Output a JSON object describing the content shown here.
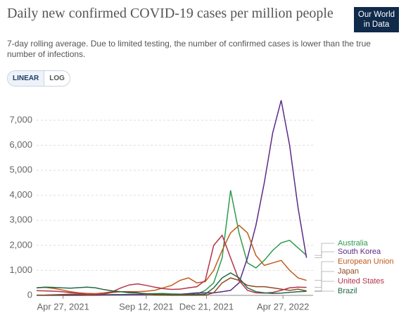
{
  "logo": {
    "line1": "Our World",
    "line2": "in Data"
  },
  "controls": [
    "LINEAR",
    "LOG"
  ],
  "chart_data": {
    "type": "line",
    "title": "Daily new confirmed COVID-19 cases per million people",
    "subtitle": "7-day rolling average. Due to limited testing, the number of confirmed cases is lower than the true number of infections.",
    "x": [
      "2021-03-14",
      "2021-03-28",
      "2021-04-11",
      "2021-04-25",
      "2021-05-09",
      "2021-05-23",
      "2021-06-06",
      "2021-06-20",
      "2021-07-04",
      "2021-07-18",
      "2021-08-01",
      "2021-08-15",
      "2021-08-29",
      "2021-09-12",
      "2021-09-26",
      "2021-10-10",
      "2021-10-24",
      "2021-11-07",
      "2021-11-21",
      "2021-12-05",
      "2021-12-19",
      "2022-01-02",
      "2022-01-16",
      "2022-01-30",
      "2022-02-13",
      "2022-02-27",
      "2022-03-13",
      "2022-03-27",
      "2022-04-10",
      "2022-04-24",
      "2022-05-08",
      "2022-05-22",
      "2022-06-05"
    ],
    "xlim": [
      "2021-03-14",
      "2022-06-16"
    ],
    "xticks": [
      {
        "value": "2021-04-27",
        "label": "Apr 27, 2021"
      },
      {
        "value": "2021-09-12",
        "label": "Sep 12, 2021"
      },
      {
        "value": "2021-12-21",
        "label": "Dec 21, 2021"
      },
      {
        "value": "2022-04-27",
        "label": "Apr 27, 2022"
      }
    ],
    "ylim": [
      0,
      7900
    ],
    "yticks": [
      0,
      {
        "value": 1000,
        "label": "1,000"
      },
      {
        "value": 2000,
        "label": "2,000"
      },
      {
        "value": 3000,
        "label": "3,000"
      },
      {
        "value": 4000,
        "label": "4,000"
      },
      {
        "value": 5000,
        "label": "5,000"
      },
      {
        "value": 6000,
        "label": "6,000"
      },
      {
        "value": 7000,
        "label": "7,000"
      }
    ],
    "grid": true,
    "series": [
      {
        "name": "Australia",
        "color": "#2f9a4e",
        "values": [
          1,
          1,
          1,
          1,
          1,
          1,
          2,
          3,
          5,
          10,
          15,
          20,
          40,
          60,
          70,
          80,
          60,
          50,
          50,
          50,
          200,
          500,
          1500,
          4200,
          2500,
          1300,
          1100,
          1400,
          1800,
          2100,
          2200,
          1900,
          1600
        ]
      },
      {
        "name": "South Korea",
        "color": "#5b2a86",
        "values": [
          8,
          9,
          10,
          12,
          11,
          11,
          10,
          12,
          25,
          30,
          30,
          35,
          30,
          35,
          40,
          35,
          30,
          45,
          70,
          100,
          100,
          100,
          150,
          200,
          500,
          1500,
          2800,
          4500,
          6500,
          7800,
          6000,
          3500,
          1500
        ]
      },
      {
        "name": "European Union",
        "color": "#c25a1c",
        "values": [
          300,
          320,
          280,
          220,
          150,
          100,
          80,
          70,
          100,
          150,
          150,
          150,
          150,
          170,
          200,
          300,
          400,
          600,
          700,
          500,
          550,
          1000,
          1800,
          2500,
          2800,
          2500,
          1600,
          1200,
          1300,
          1400,
          1000,
          700,
          600
        ]
      },
      {
        "name": "Japan",
        "color": "#8e4a1f",
        "values": [
          10,
          15,
          25,
          35,
          45,
          40,
          20,
          30,
          60,
          120,
          150,
          140,
          100,
          50,
          15,
          5,
          3,
          2,
          2,
          2,
          5,
          100,
          500,
          700,
          600,
          400,
          350,
          350,
          300,
          250,
          200,
          250,
          180
        ]
      },
      {
        "name": "United States",
        "color": "#b3344a",
        "values": [
          190,
          180,
          170,
          150,
          110,
          80,
          50,
          40,
          60,
          150,
          300,
          420,
          460,
          400,
          330,
          270,
          240,
          250,
          300,
          350,
          600,
          2000,
          2400,
          1500,
          600,
          200,
          100,
          90,
          120,
          200,
          300,
          330,
          320
        ]
      },
      {
        "name": "Brazil",
        "color": "#1f6a45",
        "values": [
          300,
          330,
          320,
          300,
          290,
          310,
          330,
          300,
          230,
          180,
          150,
          100,
          90,
          70,
          60,
          50,
          40,
          40,
          40,
          40,
          50,
          300,
          700,
          900,
          700,
          300,
          150,
          100,
          80,
          90,
          120,
          150,
          160
        ]
      }
    ]
  }
}
